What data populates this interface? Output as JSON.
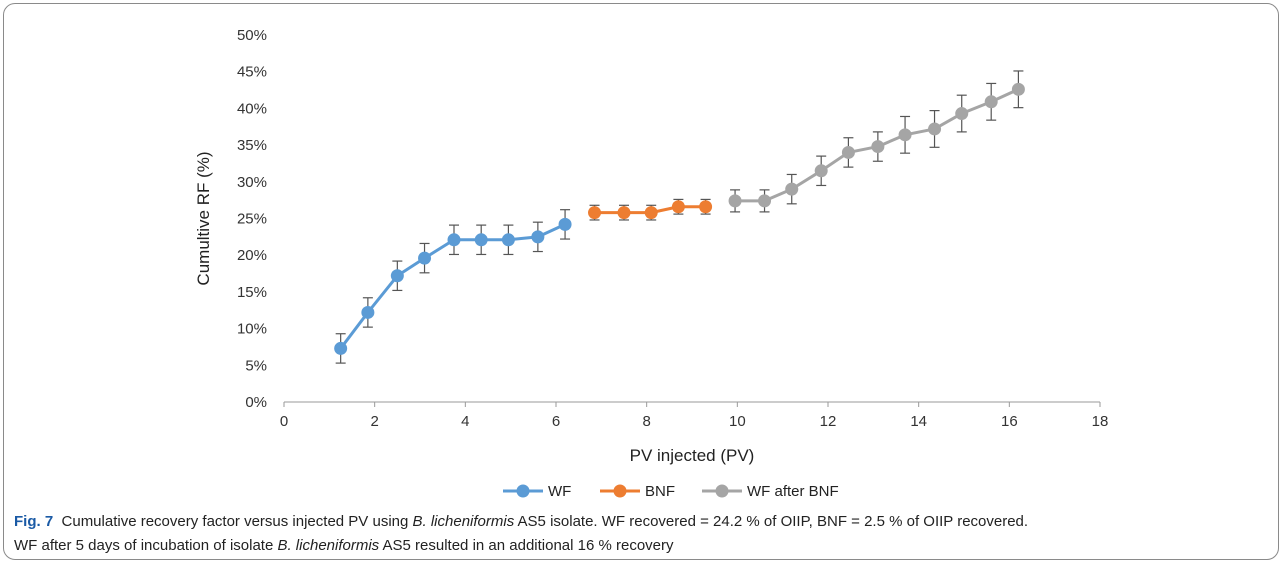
{
  "chart_data": {
    "type": "line",
    "xlabel": "PV injected (PV)",
    "ylabel": "Cumultive RF (%)",
    "xlim": [
      0,
      18
    ],
    "ylim": [
      0,
      50
    ],
    "x_ticks": [
      "0",
      "2",
      "4",
      "6",
      "8",
      "10",
      "12",
      "14",
      "16",
      "18"
    ],
    "y_ticks": [
      "0%",
      "5%",
      "10%",
      "15%",
      "20%",
      "25%",
      "30%",
      "35%",
      "40%",
      "45%",
      "50%"
    ],
    "grid": false,
    "legend_position": "bottom",
    "error_bars": true,
    "series": [
      {
        "name": "WF",
        "color": "#5b9bd5",
        "x": [
          1.25,
          1.85,
          2.5,
          3.1,
          3.75,
          4.35,
          4.95,
          5.6,
          6.2
        ],
        "y": [
          7.3,
          12.2,
          17.2,
          19.6,
          22.1,
          22.1,
          22.1,
          22.5,
          24.2
        ],
        "err": [
          2.0,
          2.0,
          2.0,
          2.0,
          2.0,
          2.0,
          2.0,
          2.0,
          2.0
        ]
      },
      {
        "name": "BNF",
        "color": "#ed7d31",
        "x": [
          6.85,
          7.5,
          8.1,
          8.7,
          9.3
        ],
        "y": [
          25.8,
          25.8,
          25.8,
          26.6,
          26.6
        ],
        "err": [
          1.0,
          1.0,
          1.0,
          1.0,
          1.0
        ]
      },
      {
        "name": "WF after BNF",
        "color": "#a5a5a5",
        "x": [
          9.95,
          10.6,
          11.2,
          11.85,
          12.45,
          13.1,
          13.7,
          14.35,
          14.95,
          15.6,
          16.2
        ],
        "y": [
          27.4,
          27.4,
          29.0,
          31.5,
          34.0,
          34.8,
          36.4,
          37.2,
          39.3,
          40.9,
          42.6
        ],
        "err": [
          1.5,
          1.5,
          2.0,
          2.0,
          2.0,
          2.0,
          2.5,
          2.5,
          2.5,
          2.5,
          2.5
        ]
      }
    ]
  },
  "caption": {
    "label": "Fig. 7",
    "text_part1": "Cumulative recovery factor versus injected PV using ",
    "italic1": "B. licheniformis",
    "text_part2": " AS5 isolate. WF recovered = 24.2 % of OIIP, BNF = 2.5 % of OIIP recovered.",
    "line2_part1": "WF after 5 days of incubation of isolate ",
    "italic2": "B. licheniformis",
    "line2_part2": " AS5 resulted in an additional 16 % recovery"
  }
}
